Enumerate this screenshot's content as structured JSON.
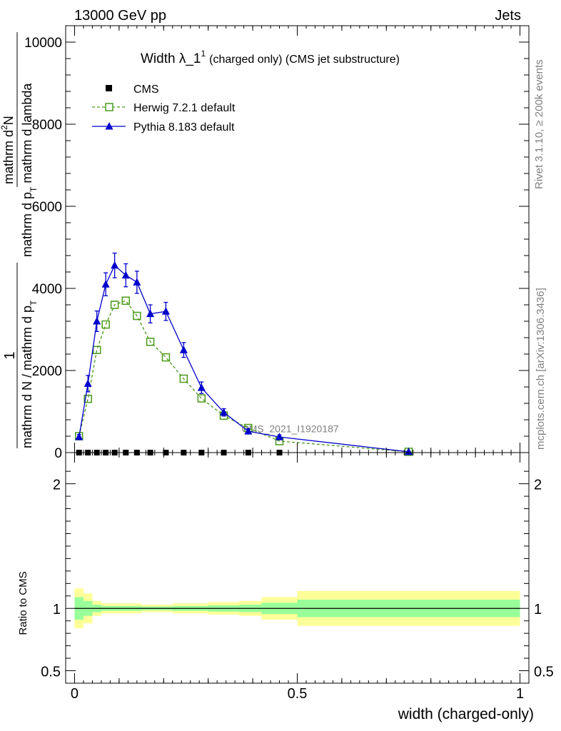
{
  "header": {
    "left": "13000 GeV pp",
    "right": "Jets"
  },
  "side_text": {
    "rivet": "Rivet 3.1.10, ≥ 200k events",
    "mcplots": "mcplots.cern.ch [arXiv:1306.3436]"
  },
  "chart_data": [
    {
      "type": "line",
      "title_main": "Width λ_1",
      "title_sup": "1",
      "title_rest": "(charged only) (CMS jet substructure)",
      "ylabel": "1 / mathrm dN / mathrm d p_T mathrm d^2N / mathrm d p_T mathrm d lambda",
      "ylabel_parts": {
        "one": "1",
        "denominator": "mathrm d N / mathrm d p",
        "denominator_sub": "T",
        "numerator_top": "mathrm d",
        "numerator_sup": "2",
        "numerator_N": "N",
        "numerator_mid": "mathrm d p",
        "numerator_mid_sub": "T",
        "numerator_end": " mathrm d lambda"
      },
      "watermark": "CMS_2021_I1920187",
      "xlim": [
        -0.02,
        1.02
      ],
      "ylim": [
        0,
        10400
      ],
      "yticks": [
        0,
        2000,
        4000,
        6000,
        8000,
        10000
      ],
      "ytick_labels": [
        "0",
        "2000",
        "4000",
        "6000",
        "8000",
        "10000"
      ],
      "legend": [
        "CMS",
        "Herwig 7.2.1 default",
        "Pythia 8.183 default"
      ],
      "series": [
        {
          "name": "CMS",
          "color": "#000000",
          "marker": "square",
          "x": [
            0.01,
            0.03,
            0.05,
            0.07,
            0.09,
            0.115,
            0.14,
            0.17,
            0.205,
            0.245,
            0.285,
            0.335,
            0.39,
            0.46
          ],
          "y": [
            0,
            0,
            0,
            0,
            0,
            0,
            0,
            0,
            0,
            0,
            0,
            0,
            0,
            0
          ]
        },
        {
          "name": "Herwig 7.2.1 default",
          "color": "#4a9a1a",
          "marker": "open-square",
          "dash": "dashed",
          "x": [
            0.01,
            0.03,
            0.05,
            0.07,
            0.09,
            0.115,
            0.14,
            0.17,
            0.205,
            0.245,
            0.285,
            0.335,
            0.39,
            0.46,
            0.75
          ],
          "y": [
            400,
            1310,
            2500,
            3120,
            3600,
            3700,
            3330,
            2700,
            2320,
            1800,
            1320,
            900,
            600,
            280,
            20
          ]
        },
        {
          "name": "Pythia 8.183 default",
          "color": "#0000cc",
          "marker": "triangle",
          "dash": "solid",
          "x": [
            0.01,
            0.03,
            0.05,
            0.07,
            0.09,
            0.115,
            0.14,
            0.17,
            0.205,
            0.245,
            0.285,
            0.335,
            0.39,
            0.46,
            0.75
          ],
          "y": [
            380,
            1680,
            3200,
            4100,
            4560,
            4320,
            4150,
            3380,
            3440,
            2500,
            1580,
            980,
            520,
            380,
            20
          ],
          "yerr": [
            60,
            200,
            250,
            280,
            300,
            280,
            270,
            220,
            220,
            180,
            140,
            90,
            60,
            50,
            10
          ]
        }
      ]
    },
    {
      "type": "area",
      "ylabel": "Ratio to CMS",
      "xlabel": "width (charged-only)",
      "xlim": [
        -0.02,
        1.02
      ],
      "ylim": [
        0.4,
        2.25
      ],
      "xticks": [
        0,
        0.5,
        1
      ],
      "xtick_labels": [
        "0",
        "0.5",
        "1"
      ],
      "yticks": [
        0.5,
        1,
        2
      ],
      "ytick_labels": [
        "0.5",
        "1",
        "2"
      ],
      "bands": {
        "bin_edges": [
          0,
          0.02,
          0.04,
          0.06,
          0.08,
          0.1,
          0.13,
          0.15,
          0.19,
          0.22,
          0.27,
          0.3,
          0.37,
          0.42,
          0.5,
          1.0
        ],
        "yellow_lo": [
          0.84,
          0.88,
          0.94,
          0.96,
          0.96,
          0.96,
          0.96,
          0.97,
          0.97,
          0.96,
          0.96,
          0.95,
          0.94,
          0.91,
          0.86
        ],
        "yellow_hi": [
          1.16,
          1.12,
          1.06,
          1.04,
          1.04,
          1.04,
          1.04,
          1.03,
          1.03,
          1.04,
          1.04,
          1.05,
          1.06,
          1.09,
          1.14
        ],
        "green_lo": [
          0.91,
          0.94,
          0.97,
          0.98,
          0.98,
          0.98,
          0.98,
          0.985,
          0.985,
          0.98,
          0.98,
          0.975,
          0.97,
          0.955,
          0.93
        ],
        "green_hi": [
          1.09,
          1.06,
          1.03,
          1.02,
          1.02,
          1.02,
          1.02,
          1.015,
          1.015,
          1.02,
          1.02,
          1.025,
          1.03,
          1.045,
          1.07
        ]
      },
      "band_colors": {
        "yellow": "#ffff99",
        "green": "#99ff99"
      }
    }
  ]
}
